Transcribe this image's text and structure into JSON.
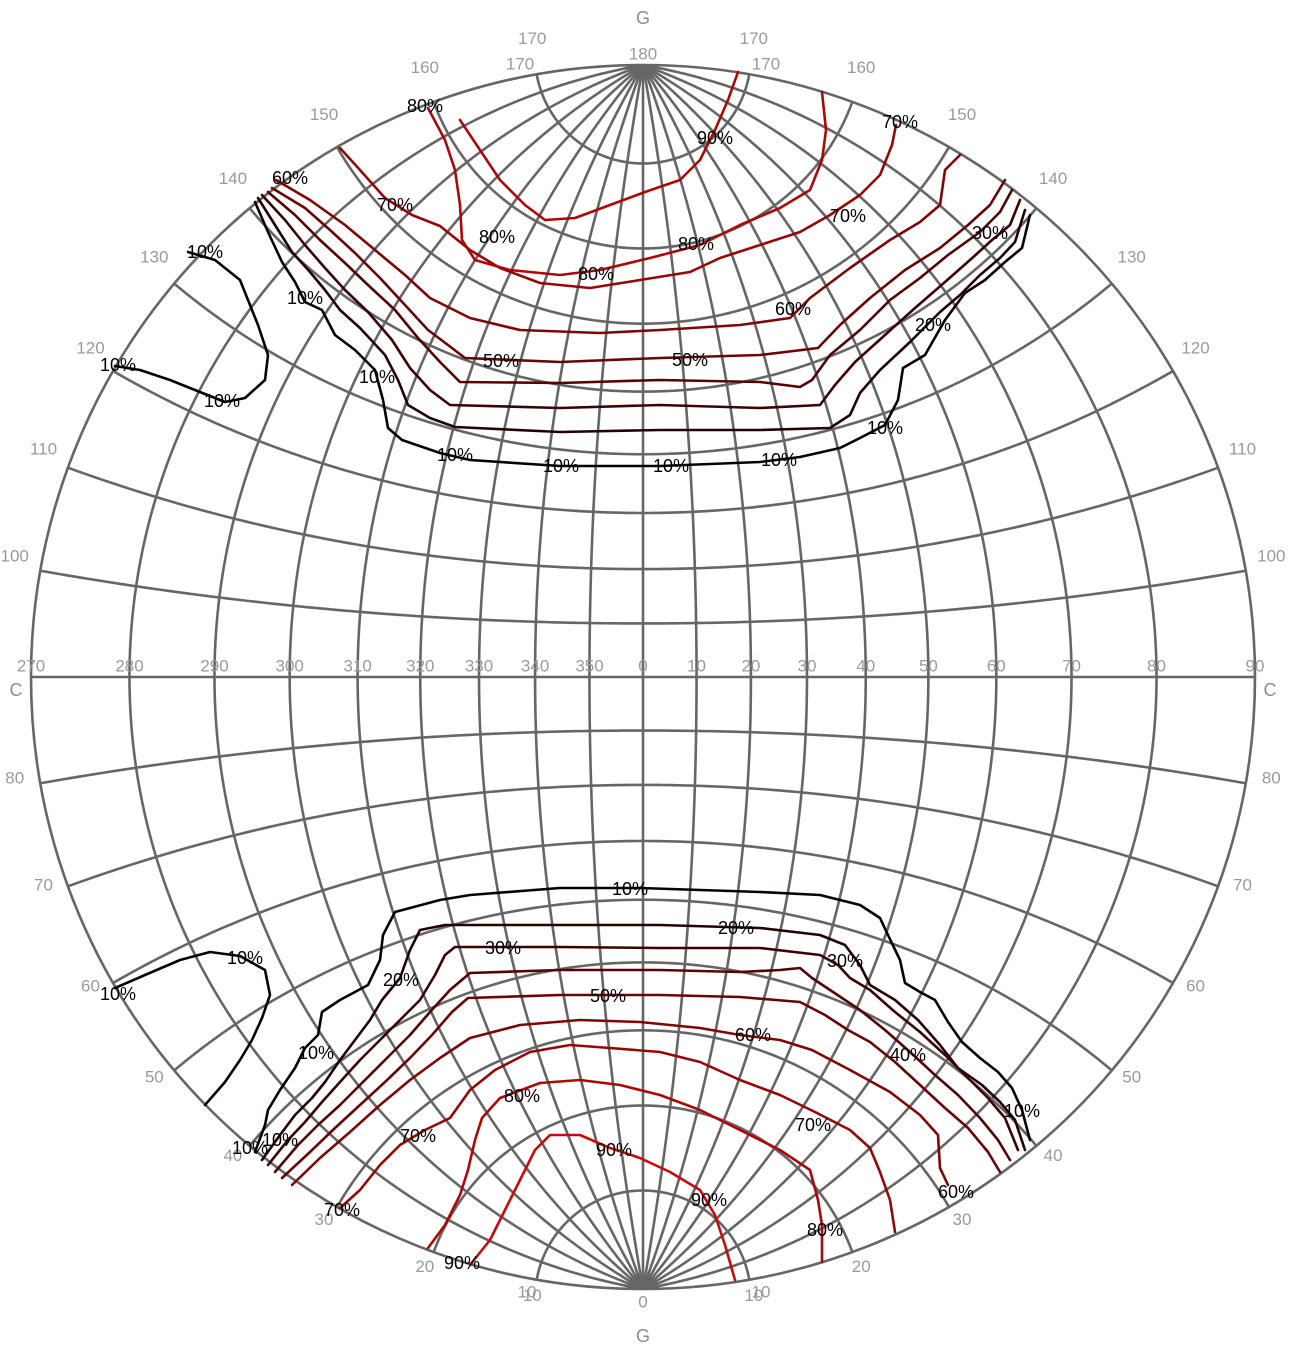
{
  "chart_data": {
    "type": "contour",
    "projection": "stereographic",
    "poles": {
      "top": "G",
      "bottom": "G",
      "left": "C",
      "right": "C"
    },
    "equator_tick_labels": [
      "270",
      "280",
      "290",
      "300",
      "310",
      "320",
      "330",
      "340",
      "350",
      "0",
      "10",
      "20",
      "30",
      "40",
      "50",
      "60",
      "70",
      "80",
      "90"
    ],
    "colatitude_ticks_upper": [
      "180",
      "170",
      "160",
      "150",
      "140",
      "130",
      "120",
      "110",
      "100"
    ],
    "colatitude_ticks_lower": [
      "80",
      "70",
      "60",
      "50",
      "40",
      "30",
      "20",
      "10",
      "0"
    ],
    "levels": [
      "10%",
      "20%",
      "30%",
      "40%",
      "50%",
      "60%",
      "70%",
      "80%",
      "90%"
    ],
    "level_colors": {
      "10%": "#0a0000",
      "20%": "#240202",
      "30%": "#3c0303",
      "40%": "#550404",
      "50%": "#6b0505",
      "60%": "#800606",
      "70%": "#960707",
      "80%": "#ad0808",
      "90%": "#c80a0a"
    },
    "label_texts": [
      "80%",
      "90%",
      "70%",
      "60%",
      "70%",
      "80%",
      "70%",
      "80%",
      "80%",
      "30%",
      "10%",
      "10%",
      "60%",
      "20%",
      "10%",
      "50%",
      "50%",
      "10%",
      "10%",
      "10%",
      "10%",
      "10%",
      "10%",
      "10%",
      "10%",
      "10%",
      "20%",
      "30%",
      "30%",
      "10%",
      "20%",
      "10%",
      "50%",
      "60%",
      "10%",
      "40%",
      "80%",
      "10%",
      "70%",
      "70%",
      "90%",
      "10%",
      "60%",
      "90%",
      "70%",
      "80%",
      "90%"
    ]
  }
}
